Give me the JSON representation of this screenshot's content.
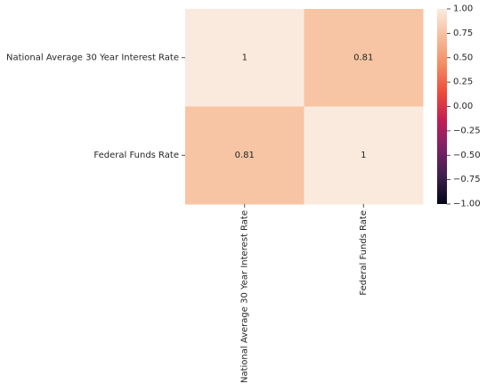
{
  "chart_data": {
    "type": "heatmap",
    "title": "",
    "xlabel": "",
    "ylabel": "",
    "row_labels": [
      "National Average 30 Year Interest Rate",
      "Federal Funds Rate"
    ],
    "col_labels": [
      "National Average 30 Year Interest Rate",
      "Federal Funds Rate"
    ],
    "values": [
      [
        1,
        0.81
      ],
      [
        0.81,
        1
      ]
    ],
    "cell_labels": [
      [
        "1",
        "0.81"
      ],
      [
        "0.81",
        "1"
      ]
    ],
    "cell_colors": [
      [
        "#faeade",
        "#f7c5a4"
      ],
      [
        "#f7c5a4",
        "#faeade"
      ]
    ],
    "colorbar": {
      "min": -1.0,
      "max": 1.0,
      "ticks": [
        1.0,
        0.75,
        0.5,
        0.25,
        0.0,
        -0.25,
        -0.5,
        -0.75,
        -1.0
      ],
      "tick_labels": [
        "1.00",
        "0.75",
        "0.50",
        "0.25",
        "0.00",
        "−0.25",
        "−0.50",
        "−0.75",
        "−1.00"
      ],
      "colormap": "rocket",
      "colormap_stops": [
        "#03051a",
        "#3e1f4d",
        "#7b2167",
        "#c11d55",
        "#ee4b3b",
        "#f48c62",
        "#f6bc9c",
        "#faebdd"
      ]
    }
  }
}
